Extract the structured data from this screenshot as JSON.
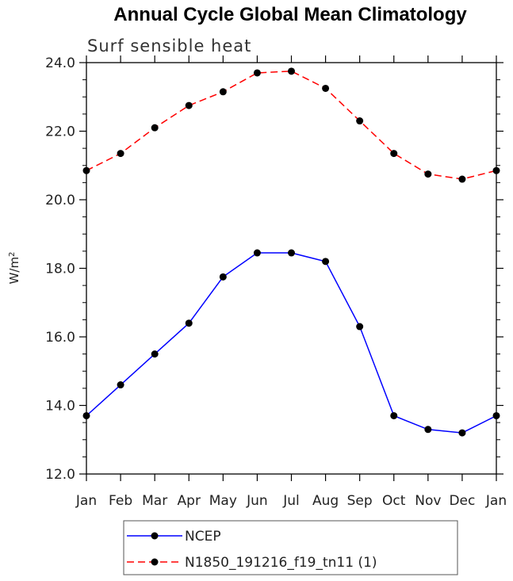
{
  "chart_data": {
    "type": "line",
    "title": "Annual Cycle Global Mean Climatology",
    "subtitle": "Surf sensible heat",
    "ylabel": "W/m",
    "ylabel_sup": "2",
    "xlabel": "",
    "categories": [
      "Jan",
      "Feb",
      "Mar",
      "Apr",
      "May",
      "Jun",
      "Jul",
      "Aug",
      "Sep",
      "Oct",
      "Nov",
      "Dec",
      "Jan"
    ],
    "ylim": [
      12.0,
      24.0
    ],
    "yticks": [
      "12.0",
      "14.0",
      "16.0",
      "18.0",
      "20.0",
      "22.0",
      "24.0"
    ],
    "ytick_values": [
      12,
      14,
      16,
      18,
      20,
      22,
      24
    ],
    "series": [
      {
        "name": "NCEP",
        "color": "#0000ff",
        "dash": "solid",
        "values": [
          13.7,
          14.6,
          15.5,
          16.4,
          17.75,
          18.45,
          18.45,
          18.2,
          16.3,
          13.7,
          13.3,
          13.2,
          13.7
        ]
      },
      {
        "name": "N1850_191216_f19_tn11 (1)",
        "color": "#ff0000",
        "dash": "dashed",
        "values": [
          20.85,
          21.35,
          22.1,
          22.75,
          23.15,
          23.7,
          23.75,
          23.25,
          22.3,
          21.35,
          20.75,
          20.6,
          20.85
        ]
      }
    ],
    "grid": false,
    "legend_position": "bottom"
  }
}
